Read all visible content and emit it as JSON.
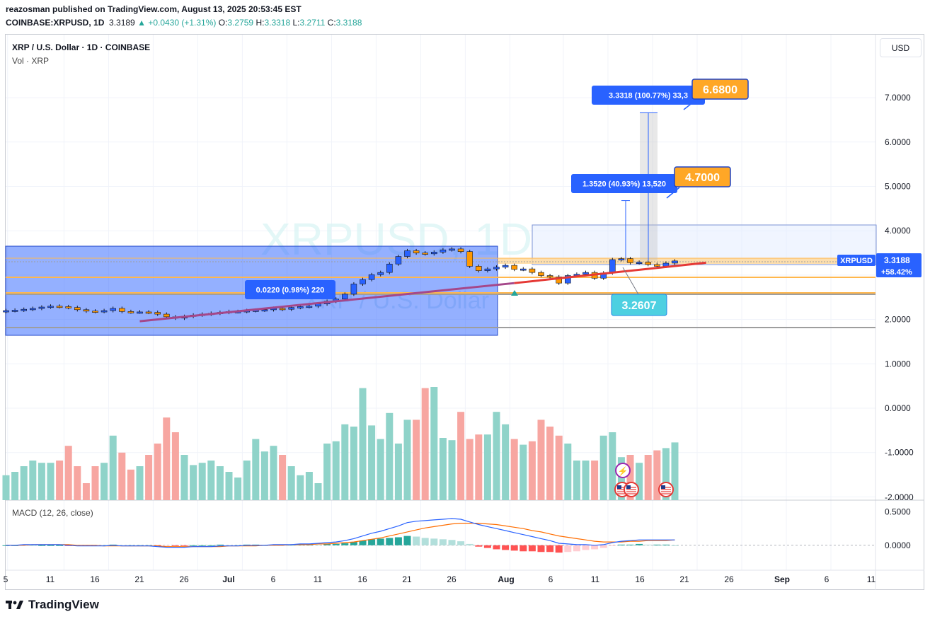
{
  "header": {
    "publisher_line": "reazosman published on TradingView.com, August 13, 2025 20:53:45 EST",
    "symbol": "COINBASE:XRPUSD, 1D",
    "last": "3.3189",
    "change_arrow": "▲",
    "change": "+0.0430 (+1.31%)",
    "o_label": "O:",
    "o_value": "3.2759",
    "h_label": "H:",
    "h_value": "3.3318",
    "l_label": "L:",
    "l_value": "3.2711",
    "c_label": "C:",
    "c_value": "3.3188"
  },
  "legend": {
    "main": "XRP / U.S. Dollar · 1D · COINBASE",
    "volume": "Vol · XRP",
    "macd": "MACD (12, 26, close)"
  },
  "watermark": {
    "symbol": "XRPUSD, 1D",
    "name": "XRP / U.S. Dollar"
  },
  "currency_button": "USD",
  "price_axis": {
    "labels": [
      "7.0000",
      "6.0000",
      "5.0000",
      "4.0000",
      "3.0000",
      "2.0000",
      "1.0000",
      "0.0000",
      "-1.0000",
      "-2.0000"
    ],
    "current_label": "XRPUSD",
    "current_price": "3.3188",
    "current_change": "+58.42%"
  },
  "macd_axis": {
    "labels": [
      "0.5000",
      "0.0000"
    ]
  },
  "time_axis": {
    "labels": [
      "5",
      "11",
      "16",
      "21",
      "26",
      "Jul",
      "6",
      "11",
      "16",
      "21",
      "26",
      "Aug",
      "6",
      "11",
      "16",
      "21",
      "26",
      "Sep",
      "6",
      "11"
    ]
  },
  "annotations": {
    "target1_label": "6.6800",
    "target1_measure": "3.3318 (100.77%) 33,3",
    "target2_label": "4.7000",
    "target2_measure": "1.3520 (40.93%) 13,520",
    "support_label": "3.2607",
    "range_measure": "0.0220 (0.98%) 220"
  },
  "colors": {
    "up": "#2962ff",
    "down": "#ff9800",
    "vol_up": "#8fd3c9",
    "vol_down": "#f7a6a1",
    "macd_line": "#2962ff",
    "signal_line": "#ff6d00",
    "trend": "#a5478a",
    "label_orange": "#ffa726",
    "label_teal": "#4dd0e1"
  },
  "chart_data": {
    "type": "candlestick",
    "title": "XRP / U.S. Dollar · 1D · COINBASE",
    "x_start": "2025-06-04",
    "y_axis": "price (USD)",
    "close": [
      2.2,
      2.21,
      2.23,
      2.25,
      2.28,
      2.3,
      2.29,
      2.27,
      2.22,
      2.19,
      2.18,
      2.2,
      2.25,
      2.18,
      2.17,
      2.17,
      2.16,
      2.12,
      2.06,
      2.03,
      2.07,
      2.1,
      2.12,
      2.14,
      2.16,
      2.18,
      2.18,
      2.2,
      2.21,
      2.22,
      2.25,
      2.23,
      2.27,
      2.29,
      2.3,
      2.35,
      2.41,
      2.46,
      2.57,
      2.8,
      2.9,
      3.01,
      3.06,
      3.25,
      3.42,
      3.55,
      3.5,
      3.48,
      3.52,
      3.57,
      3.59,
      3.53,
      3.2,
      3.1,
      3.14,
      3.18,
      3.22,
      3.13,
      3.14,
      3.06,
      2.99,
      2.96,
      2.82,
      2.99,
      3.02,
      3.06,
      2.93,
      3.05,
      3.35,
      3.37,
      3.28,
      3.29,
      3.24,
      3.2,
      3.27,
      3.32
    ],
    "volume_relative": [
      0.22,
      0.25,
      0.3,
      0.35,
      0.33,
      0.33,
      0.35,
      0.48,
      0.3,
      0.15,
      0.3,
      0.33,
      0.57,
      0.42,
      0.27,
      0.3,
      0.4,
      0.5,
      0.73,
      0.6,
      0.4,
      0.31,
      0.33,
      0.35,
      0.3,
      0.25,
      0.2,
      0.35,
      0.54,
      0.43,
      0.48,
      0.4,
      0.3,
      0.22,
      0.25,
      0.15,
      0.5,
      0.52,
      0.67,
      0.65,
      0.99,
      0.66,
      0.54,
      0.77,
      0.5,
      0.71,
      0.71,
      0.99,
      1.0,
      0.55,
      0.53,
      0.78,
      0.54,
      0.58,
      0.58,
      0.78,
      0.67,
      0.54,
      0.49,
      0.52,
      0.71,
      0.65,
      0.57,
      0.5,
      0.35,
      0.35,
      0.35,
      0.57,
      0.6,
      0.38,
      0.4,
      0.33,
      0.4,
      0.44,
      0.46,
      0.51
    ],
    "macd": [
      0.0,
      0.0,
      0.01,
      0.01,
      0.01,
      0.01,
      0.01,
      0.0,
      -0.01,
      -0.01,
      -0.01,
      -0.01,
      0.0,
      -0.01,
      -0.01,
      -0.01,
      -0.01,
      -0.02,
      -0.03,
      -0.03,
      -0.03,
      -0.02,
      -0.02,
      -0.02,
      -0.01,
      -0.01,
      -0.01,
      0.0,
      0.0,
      0.0,
      0.01,
      0.01,
      0.01,
      0.02,
      0.02,
      0.03,
      0.04,
      0.05,
      0.07,
      0.1,
      0.14,
      0.18,
      0.21,
      0.25,
      0.29,
      0.34,
      0.36,
      0.37,
      0.38,
      0.39,
      0.4,
      0.39,
      0.35,
      0.31,
      0.28,
      0.25,
      0.22,
      0.19,
      0.16,
      0.13,
      0.1,
      0.07,
      0.03,
      0.02,
      0.01,
      0.01,
      0.0,
      0.01,
      0.04,
      0.06,
      0.07,
      0.08,
      0.08,
      0.08,
      0.08,
      0.08
    ],
    "signal": [
      0.0,
      0.0,
      0.0,
      0.01,
      0.01,
      0.01,
      0.01,
      0.01,
      0.0,
      0.0,
      0.0,
      -0.01,
      -0.01,
      -0.01,
      -0.01,
      -0.01,
      -0.01,
      -0.01,
      -0.02,
      -0.02,
      -0.02,
      -0.02,
      -0.02,
      -0.02,
      -0.02,
      -0.01,
      -0.01,
      -0.01,
      -0.01,
      0.0,
      0.0,
      0.0,
      0.01,
      0.01,
      0.01,
      0.02,
      0.02,
      0.03,
      0.04,
      0.05,
      0.07,
      0.09,
      0.11,
      0.14,
      0.17,
      0.2,
      0.23,
      0.26,
      0.28,
      0.3,
      0.32,
      0.33,
      0.33,
      0.33,
      0.32,
      0.31,
      0.29,
      0.27,
      0.25,
      0.22,
      0.2,
      0.17,
      0.14,
      0.12,
      0.1,
      0.08,
      0.06,
      0.05,
      0.05,
      0.05,
      0.06,
      0.06,
      0.07,
      0.07,
      0.07,
      0.08
    ],
    "levels": {
      "target1": 6.68,
      "target2": 4.7,
      "support": 3.2607,
      "current": 3.3188
    },
    "ylim": [
      -2,
      7.5
    ]
  }
}
